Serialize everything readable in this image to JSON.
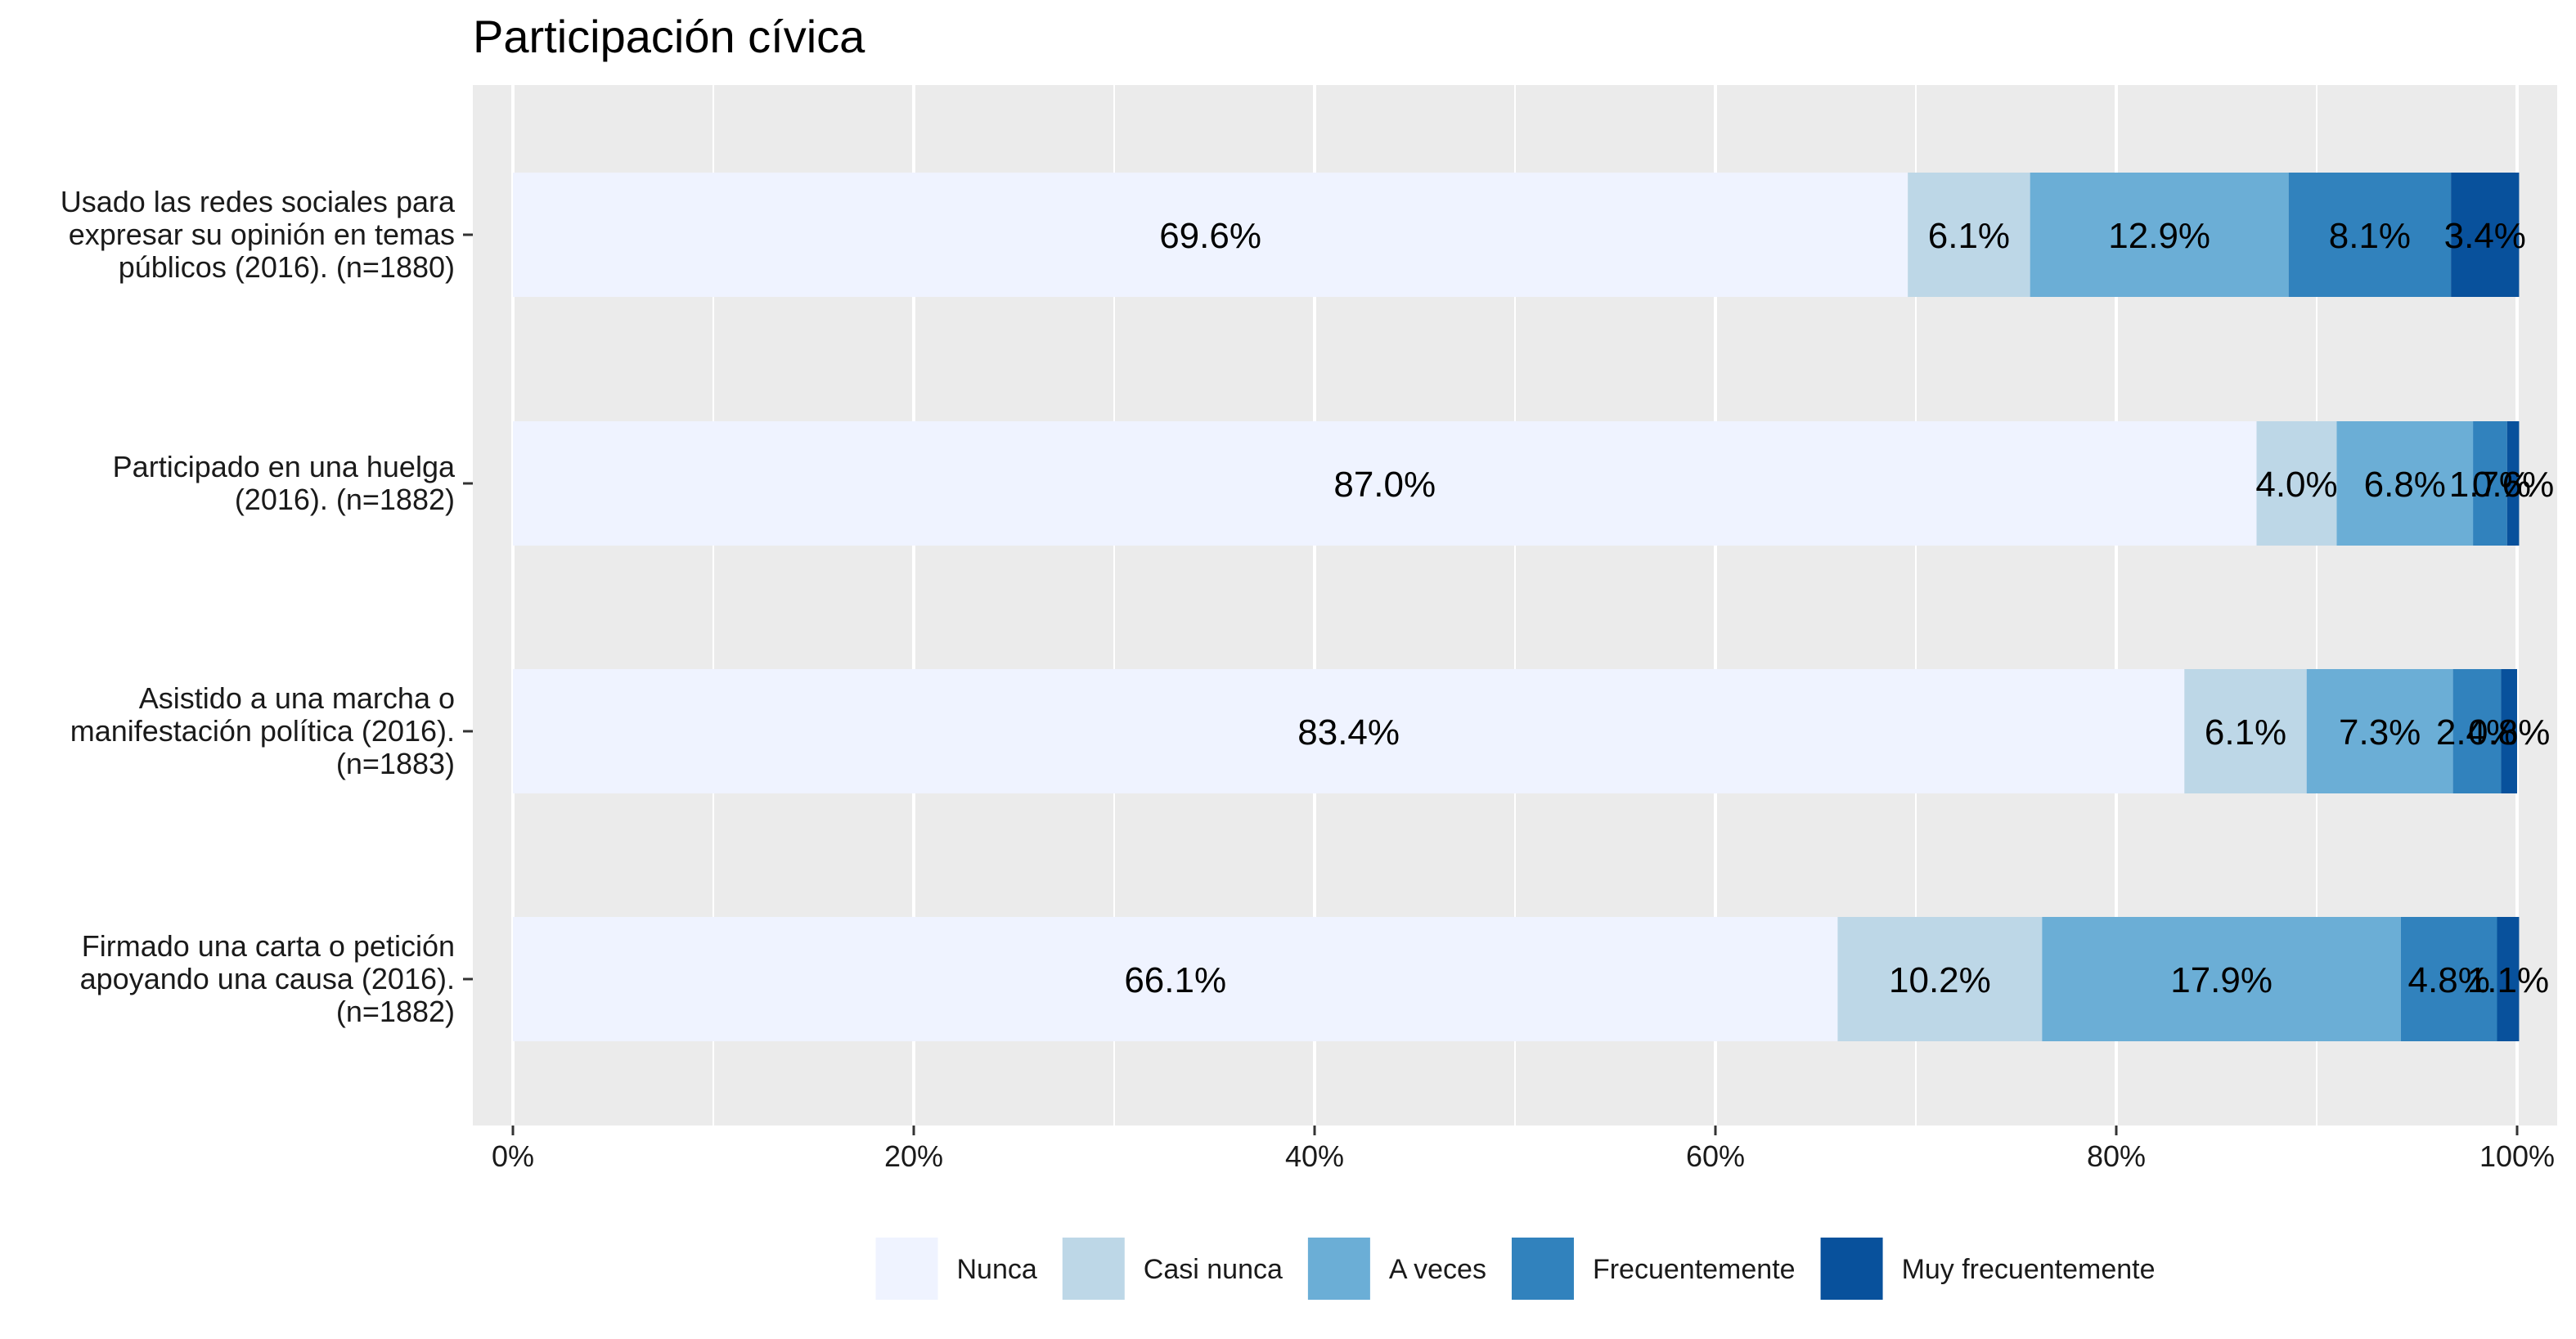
{
  "chart_data": {
    "type": "bar",
    "orientation": "horizontal",
    "stacked": true,
    "title": "Participación cívica",
    "xlabel": "",
    "ylabel": "",
    "xlim": [
      0,
      100
    ],
    "x_ticks": [
      "0%",
      "20%",
      "40%",
      "60%",
      "80%",
      "100%"
    ],
    "grid": true,
    "legend_position": "bottom",
    "categories": [
      "Usado las redes sociales para expresar su opinión en temas públicos (2016). (n=1880)",
      "Participado en una huelga (2016). (n=1882)",
      "Asistido a una marcha o manifestación política (2016). (n=1883)",
      "Firmado una carta o petición apoyando una causa (2016). (n=1882)"
    ],
    "category_lines": [
      [
        "Usado las redes sociales para",
        "expresar su opinión en temas",
        "públicos (2016). (n=1880)"
      ],
      [
        "Participado en una huelga",
        "(2016). (n=1882)"
      ],
      [
        "Asistido a una marcha o",
        "manifestación política (2016).",
        "(n=1883)"
      ],
      [
        "Firmado una carta o petición",
        "apoyando una causa (2016).",
        "(n=1882)"
      ]
    ],
    "series": [
      {
        "name": "Nunca",
        "color": "#eff3ff",
        "values": [
          69.6,
          87.0,
          83.4,
          66.1
        ],
        "labels": [
          "69.6%",
          "87.0%",
          "83.4%",
          "66.1%"
        ]
      },
      {
        "name": "Casi nunca",
        "color": "#bdd7e7",
        "values": [
          6.1,
          4.0,
          6.1,
          10.2
        ],
        "labels": [
          "6.1%",
          "4.0%",
          "6.1%",
          "10.2%"
        ]
      },
      {
        "name": "A veces",
        "color": "#6baed6",
        "values": [
          12.9,
          6.8,
          7.3,
          17.9
        ],
        "labels": [
          "12.9%",
          "6.8%",
          "7.3%",
          "17.9%"
        ]
      },
      {
        "name": "Frecuentemente",
        "color": "#3182bd",
        "values": [
          8.1,
          1.7,
          2.4,
          4.8
        ],
        "labels": [
          "8.1%",
          "1.7%",
          "2.4%",
          "4.8%"
        ]
      },
      {
        "name": "Muy frecuentemente",
        "color": "#08519c",
        "values": [
          3.4,
          0.6,
          0.8,
          1.1
        ],
        "labels": [
          "3.4%",
          "0.6%",
          "0.8%",
          "1.1%"
        ]
      }
    ]
  }
}
